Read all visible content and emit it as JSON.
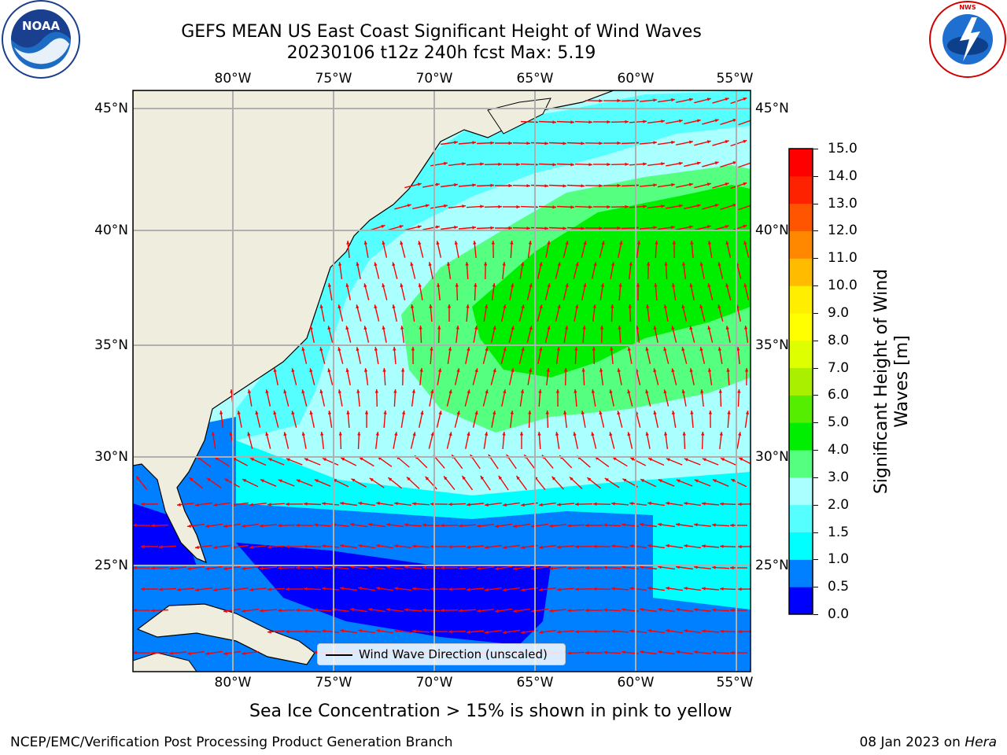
{
  "title": {
    "line1": "GEFS MEAN US East Coast Significant Height of Wind Waves",
    "line2": "20230106 t12z 240h fcst   Max: 5.19"
  },
  "logos": {
    "left": {
      "name": "noaa-logo",
      "text": "NOAA"
    },
    "right": {
      "name": "nws-logo",
      "text": "NATIONAL WEATHER SERVICE"
    }
  },
  "axes": {
    "lon_labels": [
      "80°W",
      "75°W",
      "70°W",
      "65°W",
      "60°W",
      "55°W"
    ],
    "lat_labels": [
      "45°N",
      "40°N",
      "35°N",
      "30°N",
      "25°N"
    ]
  },
  "colorbar": {
    "label": "Significant Height of Wind Waves [m]",
    "label_line1": "Significant Height of Wind",
    "label_line2": "Waves [m]",
    "ticks": [
      "15.0",
      "14.0",
      "13.0",
      "12.0",
      "11.0",
      "10.0",
      "9.0",
      "8.0",
      "7.0",
      "6.0",
      "5.0",
      "4.0",
      "3.0",
      "2.0",
      "1.5",
      "1.0",
      "0.5",
      "0.0"
    ],
    "colors": [
      "#0000ff",
      "#0080ff",
      "#00ffff",
      "#55ffff",
      "#aaffff",
      "#55ff80",
      "#00ee00",
      "#55ee00",
      "#aaee00",
      "#ddff00",
      "#ffff00",
      "#ffee00",
      "#ffbb00",
      "#ff8800",
      "#ff5500",
      "#ff2200",
      "#ff0000"
    ]
  },
  "legend": {
    "label": "Wind Wave Direction (unscaled)"
  },
  "caption": "Sea Ice Concentration > 15% is shown in pink to yellow",
  "footer": {
    "left": "NCEP/EMC/Verification Post Processing Product Generation Branch",
    "right_prefix": "08 Jan 2023 on ",
    "right_host": "Hera"
  },
  "map_colors": {
    "land": "#efedde",
    "grid": "#b0b0b0",
    "arrow": "#ff0000",
    "coast": "#000000"
  }
}
